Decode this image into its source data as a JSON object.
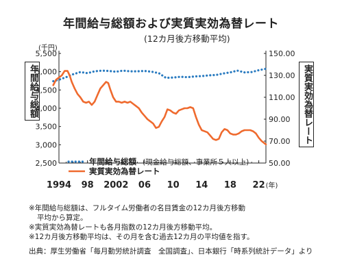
{
  "header": {
    "title": "年間給与総額および実質実効為替レート",
    "subtitle": "(12カ月後方移動平均)"
  },
  "chart_data": {
    "type": "line",
    "title": "年間給与総額および実質実効為替レート",
    "subtitle": "(12カ月後方移動平均)",
    "left_axis": {
      "label": "年間給与総額",
      "unit": "(千円)",
      "range": [
        2500,
        5500
      ],
      "ticks": [
        "5,500",
        "5,000",
        "4,500",
        "4,000",
        "3,500",
        "3,000",
        "2,500"
      ]
    },
    "right_axis": {
      "label": "実質実効為替レート",
      "range": [
        50,
        150
      ],
      "ticks": [
        "150.00",
        "130.00",
        "110.00",
        "90.00",
        "70.00",
        "50.00"
      ]
    },
    "x_axis": {
      "range": [
        1994,
        2023
      ],
      "ticks": [
        {
          "value": 1994,
          "label": "1994"
        },
        {
          "value": 1998,
          "label": "98"
        },
        {
          "value": 2002,
          "label": "2002"
        },
        {
          "value": 2006,
          "label": "06"
        },
        {
          "value": 2010,
          "label": "10"
        },
        {
          "value": 2014,
          "label": "14"
        },
        {
          "value": 2018,
          "label": "18"
        },
        {
          "value": 2022,
          "label": "22"
        }
      ],
      "suffix": "(年)"
    },
    "legend": {
      "wage_name": "年間給与総額",
      "wage_note": "(現金給与総額、事業所５人以上)",
      "reer_name": "実質実効為替レート",
      "placement": "bottom-center"
    },
    "colors": {
      "wage": "#2a7bc0",
      "reer": "#ef6a2e"
    },
    "series": [
      {
        "key": "wage",
        "axis": "left",
        "style": "dotted",
        "points": [
          [
            1993.2,
            4740
          ],
          [
            1994,
            4780
          ],
          [
            1995,
            4850
          ],
          [
            1996,
            4930
          ],
          [
            1997,
            4990
          ],
          [
            1998,
            4960
          ],
          [
            1999,
            5010
          ],
          [
            2000,
            5030
          ],
          [
            2001,
            5020
          ],
          [
            2002,
            5000
          ],
          [
            2003,
            5030
          ],
          [
            2004,
            5010
          ],
          [
            2005,
            5010
          ],
          [
            2006,
            5020
          ],
          [
            2007,
            5000
          ],
          [
            2008,
            4960
          ],
          [
            2009,
            4830
          ],
          [
            2010,
            4840
          ],
          [
            2011,
            4860
          ],
          [
            2012,
            4850
          ],
          [
            2013,
            4870
          ],
          [
            2014,
            4880
          ],
          [
            2015,
            4900
          ],
          [
            2016,
            4910
          ],
          [
            2017,
            4950
          ],
          [
            2018,
            4980
          ],
          [
            2019,
            5030
          ],
          [
            2020,
            4980
          ],
          [
            2021,
            4990
          ],
          [
            2022,
            5040
          ],
          [
            2023,
            5080
          ]
        ]
      },
      {
        "key": "reer",
        "axis": "right",
        "style": "solid",
        "points": [
          [
            1993.2,
            121
          ],
          [
            1993.6,
            126
          ],
          [
            1994.0,
            128
          ],
          [
            1994.4,
            130
          ],
          [
            1994.8,
            134
          ],
          [
            1995.2,
            134
          ],
          [
            1995.5,
            130
          ],
          [
            1995.8,
            124
          ],
          [
            1996.2,
            118
          ],
          [
            1996.6,
            113
          ],
          [
            1997.0,
            110
          ],
          [
            1997.4,
            106
          ],
          [
            1997.8,
            105
          ],
          [
            1998.2,
            106
          ],
          [
            1998.6,
            103
          ],
          [
            1999.0,
            106
          ],
          [
            1999.4,
            112
          ],
          [
            1999.8,
            118
          ],
          [
            2000.2,
            121
          ],
          [
            2000.6,
            124
          ],
          [
            2000.9,
            123
          ],
          [
            2001.2,
            117
          ],
          [
            2001.6,
            110
          ],
          [
            2002.0,
            106
          ],
          [
            2002.4,
            106
          ],
          [
            2002.8,
            105
          ],
          [
            2003.2,
            106
          ],
          [
            2003.6,
            105
          ],
          [
            2004.0,
            106
          ],
          [
            2004.4,
            104
          ],
          [
            2004.8,
            102
          ],
          [
            2005.2,
            100
          ],
          [
            2005.6,
            96
          ],
          [
            2006.0,
            93
          ],
          [
            2006.4,
            90
          ],
          [
            2006.8,
            88
          ],
          [
            2007.2,
            86
          ],
          [
            2007.6,
            82
          ],
          [
            2008.0,
            83
          ],
          [
            2008.4,
            88
          ],
          [
            2008.8,
            92
          ],
          [
            2009.2,
            99
          ],
          [
            2009.6,
            98
          ],
          [
            2010.0,
            96
          ],
          [
            2010.4,
            95
          ],
          [
            2010.8,
            98
          ],
          [
            2011.2,
            99
          ],
          [
            2011.6,
            100
          ],
          [
            2012.0,
            100
          ],
          [
            2012.4,
            101
          ],
          [
            2012.8,
            100
          ],
          [
            2013.2,
            92
          ],
          [
            2013.6,
            85
          ],
          [
            2014.0,
            80
          ],
          [
            2014.4,
            79
          ],
          [
            2014.8,
            78
          ],
          [
            2015.2,
            75
          ],
          [
            2015.6,
            72
          ],
          [
            2016.0,
            71
          ],
          [
            2016.4,
            72
          ],
          [
            2016.8,
            78
          ],
          [
            2017.2,
            81
          ],
          [
            2017.6,
            80
          ],
          [
            2018.0,
            77
          ],
          [
            2018.4,
            76
          ],
          [
            2018.8,
            76
          ],
          [
            2019.2,
            77
          ],
          [
            2019.6,
            79
          ],
          [
            2020.0,
            80
          ],
          [
            2020.4,
            80
          ],
          [
            2020.8,
            80
          ],
          [
            2021.2,
            79
          ],
          [
            2021.6,
            77
          ],
          [
            2022.0,
            73
          ],
          [
            2022.4,
            70
          ],
          [
            2022.8,
            68
          ],
          [
            2023.0,
            67
          ]
        ]
      }
    ]
  },
  "notes": {
    "line1": "※年間給与総額は、フルタイム労働者の名目賃金の12カ月後方移動",
    "line1b": "平均から算定。",
    "line2": "※実質実効為替レートも各月指数の12カ月後方移動平均。",
    "line3": "※12カ月後方移動平均は、その月を含む過去12カ月の平均値を指す。"
  },
  "source": {
    "text": "出典：厚生労働省「毎月勤労統計調査　全国調査」、日本銀行「時系列統計データ」より"
  }
}
